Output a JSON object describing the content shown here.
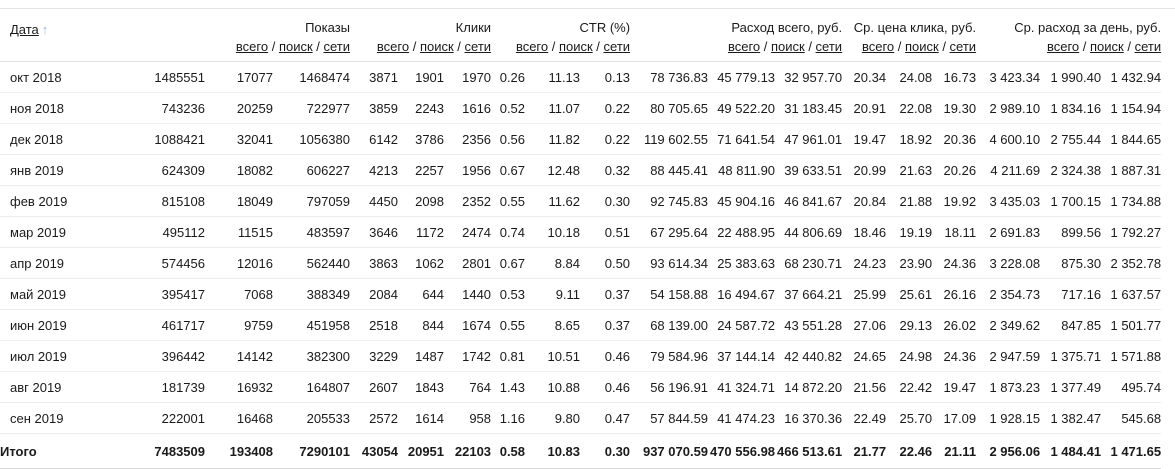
{
  "header": {
    "date_label": "Дата",
    "sort_icon": "↑",
    "sub_links": [
      "всего",
      "поиск",
      "сети"
    ],
    "sub_separator": " / ",
    "groups": [
      {
        "id": "impressions",
        "label": "Показы"
      },
      {
        "id": "clicks",
        "label": "Клики"
      },
      {
        "id": "ctr",
        "label": "CTR (%)"
      },
      {
        "id": "total-cost",
        "label": "Расход всего, руб."
      },
      {
        "id": "avg-click-cost",
        "label": "Ср. цена клика, руб."
      },
      {
        "id": "avg-daily-cost",
        "label": "Ср. расход за день, руб."
      }
    ]
  },
  "rows": [
    {
      "date": "окт 2018",
      "values": [
        "1485551",
        "17077",
        "1468474",
        "3871",
        "1901",
        "1970",
        "0.26",
        "11.13",
        "0.13",
        "78 736.83",
        "45 779.13",
        "32 957.70",
        "20.34",
        "24.08",
        "16.73",
        "3 423.34",
        "1 990.40",
        "1 432.94"
      ]
    },
    {
      "date": "ноя 2018",
      "values": [
        "743236",
        "20259",
        "722977",
        "3859",
        "2243",
        "1616",
        "0.52",
        "11.07",
        "0.22",
        "80 705.65",
        "49 522.20",
        "31 183.45",
        "20.91",
        "22.08",
        "19.30",
        "2 989.10",
        "1 834.16",
        "1 154.94"
      ]
    },
    {
      "date": "дек 2018",
      "values": [
        "1088421",
        "32041",
        "1056380",
        "6142",
        "3786",
        "2356",
        "0.56",
        "11.82",
        "0.22",
        "119 602.55",
        "71 641.54",
        "47 961.01",
        "19.47",
        "18.92",
        "20.36",
        "4 600.10",
        "2 755.44",
        "1 844.65"
      ]
    },
    {
      "date": "янв 2019",
      "values": [
        "624309",
        "18082",
        "606227",
        "4213",
        "2257",
        "1956",
        "0.67",
        "12.48",
        "0.32",
        "88 445.41",
        "48 811.90",
        "39 633.51",
        "20.99",
        "21.63",
        "20.26",
        "4 211.69",
        "2 324.38",
        "1 887.31"
      ]
    },
    {
      "date": "фев 2019",
      "values": [
        "815108",
        "18049",
        "797059",
        "4450",
        "2098",
        "2352",
        "0.55",
        "11.62",
        "0.30",
        "92 745.83",
        "45 904.16",
        "46 841.67",
        "20.84",
        "21.88",
        "19.92",
        "3 435.03",
        "1 700.15",
        "1 734.88"
      ]
    },
    {
      "date": "мар 2019",
      "values": [
        "495112",
        "11515",
        "483597",
        "3646",
        "1172",
        "2474",
        "0.74",
        "10.18",
        "0.51",
        "67 295.64",
        "22 488.95",
        "44 806.69",
        "18.46",
        "19.19",
        "18.11",
        "2 691.83",
        "899.56",
        "1 792.27"
      ]
    },
    {
      "date": "апр 2019",
      "values": [
        "574456",
        "12016",
        "562440",
        "3863",
        "1062",
        "2801",
        "0.67",
        "8.84",
        "0.50",
        "93 614.34",
        "25 383.63",
        "68 230.71",
        "24.23",
        "23.90",
        "24.36",
        "3 228.08",
        "875.30",
        "2 352.78"
      ]
    },
    {
      "date": "май 2019",
      "values": [
        "395417",
        "7068",
        "388349",
        "2084",
        "644",
        "1440",
        "0.53",
        "9.11",
        "0.37",
        "54 158.88",
        "16 494.67",
        "37 664.21",
        "25.99",
        "25.61",
        "26.16",
        "2 354.73",
        "717.16",
        "1 637.57"
      ]
    },
    {
      "date": "июн 2019",
      "values": [
        "461717",
        "9759",
        "451958",
        "2518",
        "844",
        "1674",
        "0.55",
        "8.65",
        "0.37",
        "68 139.00",
        "24 587.72",
        "43 551.28",
        "27.06",
        "29.13",
        "26.02",
        "2 349.62",
        "847.85",
        "1 501.77"
      ]
    },
    {
      "date": "июл 2019",
      "values": [
        "396442",
        "14142",
        "382300",
        "3229",
        "1487",
        "1742",
        "0.81",
        "10.51",
        "0.46",
        "79 584.96",
        "37 144.14",
        "42 440.82",
        "24.65",
        "24.98",
        "24.36",
        "2 947.59",
        "1 375.71",
        "1 571.88"
      ]
    },
    {
      "date": "авг 2019",
      "values": [
        "181739",
        "16932",
        "164807",
        "2607",
        "1843",
        "764",
        "1.43",
        "10.88",
        "0.46",
        "56 196.91",
        "41 324.71",
        "14 872.20",
        "21.56",
        "22.42",
        "19.47",
        "1 873.23",
        "1 377.49",
        "495.74"
      ]
    },
    {
      "date": "сен 2019",
      "values": [
        "222001",
        "16468",
        "205533",
        "2572",
        "1614",
        "958",
        "1.16",
        "9.80",
        "0.47",
        "57 844.59",
        "41 474.23",
        "16 370.36",
        "22.49",
        "25.70",
        "17.09",
        "1 928.15",
        "1 382.47",
        "545.68"
      ]
    }
  ],
  "totals": {
    "label": "Итого",
    "values": [
      "7483509",
      "193408",
      "7290101",
      "43054",
      "20951",
      "22103",
      "0.58",
      "10.83",
      "0.30",
      "937 070.59",
      "470 556.98",
      "466 513.61",
      "21.77",
      "22.46",
      "21.11",
      "2 956.06",
      "1 484.41",
      "1 471.65"
    ]
  },
  "colors": {
    "text": "#1a1a1a",
    "sort_arrow": "#9db0d9",
    "row_divider": "#ededed",
    "header_divider": "#e0e0e0",
    "totals_divider": "#d6d6d6"
  }
}
